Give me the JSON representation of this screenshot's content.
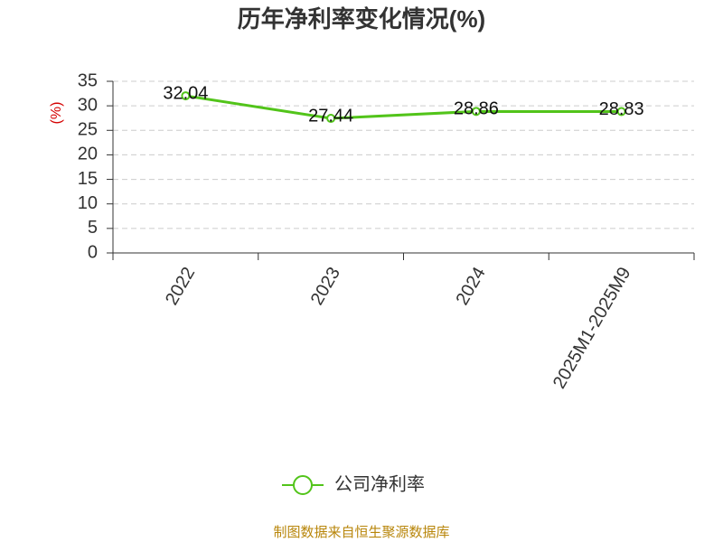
{
  "chart_data": {
    "type": "line",
    "title": "历年净利率变化情况(%)",
    "y_label": "(%)",
    "categories": [
      "2022",
      "2023",
      "2024",
      "2025M1-2025M9"
    ],
    "series": [
      {
        "name": "公司净利率",
        "color": "#52c41a",
        "values": [
          32.04,
          27.44,
          28.86,
          28.83
        ]
      }
    ],
    "ylim": [
      0,
      35
    ],
    "yticks": [
      0,
      5,
      10,
      15,
      20,
      25,
      30,
      35
    ],
    "grid": true,
    "legend": "bottom",
    "source": "制图数据来自恒生聚源数据库"
  }
}
